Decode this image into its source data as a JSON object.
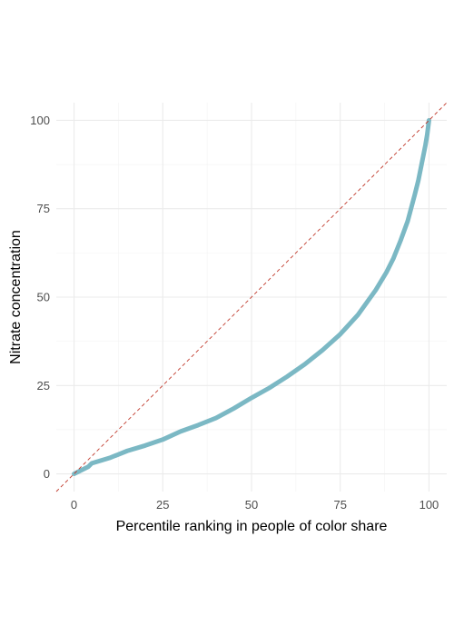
{
  "chart_data": {
    "type": "line",
    "title": "",
    "xlabel": "Percentile ranking in people of color share",
    "ylabel": "Nitrate concentration",
    "xlim": [
      -5,
      105
    ],
    "ylim": [
      -5,
      105
    ],
    "x_ticks": [
      0,
      25,
      50,
      75,
      100
    ],
    "y_ticks": [
      0,
      25,
      50,
      75,
      100
    ],
    "x_tick_labels": [
      "0",
      "25",
      "50",
      "75",
      "100"
    ],
    "y_tick_labels": [
      "0",
      "25",
      "50",
      "75",
      "100"
    ],
    "grid": true,
    "legend": "none",
    "series": [
      {
        "color": "#7bb8c4",
        "style": "solid",
        "x": [
          0,
          2,
          4,
          5,
          10,
          15,
          20,
          25,
          30,
          35,
          40,
          45,
          50,
          55,
          60,
          65,
          70,
          75,
          80,
          85,
          88,
          90,
          92,
          94,
          96,
          97,
          98,
          99,
          99.5,
          100
        ],
        "y": [
          0,
          1,
          2,
          3,
          4.5,
          6.5,
          8,
          9.7,
          12,
          13.8,
          15.8,
          18.5,
          21.5,
          24.3,
          27.5,
          31,
          35,
          39.5,
          45,
          52,
          57,
          61,
          66,
          71.5,
          79,
          83,
          88,
          93,
          96,
          100
        ]
      },
      {
        "color": "#c0392b",
        "style": "dashed",
        "x": [
          -5,
          105
        ],
        "y": [
          -5,
          105
        ]
      }
    ]
  }
}
